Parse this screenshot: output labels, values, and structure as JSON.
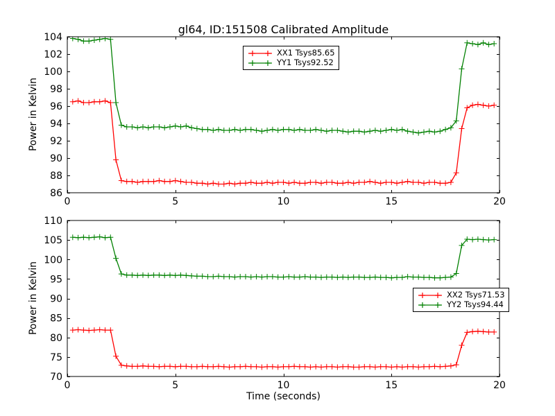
{
  "figure": {
    "background": "#ffffff",
    "axes_color": "#000000"
  },
  "chart_data": [
    {
      "type": "line",
      "title": "gl64, ID:151508 Calibrated Amplitude",
      "xlabel": "",
      "ylabel": "Power in Kelvin",
      "xlim": [
        0,
        20
      ],
      "ylim": [
        86,
        104
      ],
      "xticks": [
        0,
        5,
        10,
        15,
        20
      ],
      "yticks": [
        86,
        88,
        90,
        92,
        94,
        96,
        98,
        100,
        102,
        104
      ],
      "grid": false,
      "legend_position": "upper center",
      "x": [
        0.25,
        0.5,
        0.75,
        1.0,
        1.25,
        1.5,
        1.75,
        2.0,
        2.25,
        2.5,
        2.75,
        3.0,
        3.25,
        3.5,
        3.75,
        4.0,
        4.25,
        4.5,
        4.75,
        5.0,
        5.25,
        5.5,
        5.75,
        6.0,
        6.25,
        6.5,
        6.75,
        7.0,
        7.25,
        7.5,
        7.75,
        8.0,
        8.25,
        8.5,
        8.75,
        9.0,
        9.25,
        9.5,
        9.75,
        10.0,
        10.25,
        10.5,
        10.75,
        11.0,
        11.25,
        11.5,
        11.75,
        12.0,
        12.25,
        12.5,
        12.75,
        13.0,
        13.25,
        13.5,
        13.75,
        14.0,
        14.25,
        14.5,
        14.75,
        15.0,
        15.25,
        15.5,
        15.75,
        16.0,
        16.25,
        16.5,
        16.75,
        17.0,
        17.25,
        17.5,
        17.75,
        18.0,
        18.25,
        18.5,
        18.75,
        19.0,
        19.25,
        19.5,
        19.75
      ],
      "series": [
        {
          "name": "XX1",
          "label": "XX1 Tsys85.65",
          "color": "#ff0000",
          "marker": "+",
          "y": [
            96.5,
            96.6,
            96.4,
            96.4,
            96.5,
            96.5,
            96.6,
            96.4,
            89.8,
            87.4,
            87.3,
            87.3,
            87.2,
            87.3,
            87.3,
            87.3,
            87.4,
            87.3,
            87.3,
            87.4,
            87.3,
            87.2,
            87.2,
            87.1,
            87.1,
            87.0,
            87.1,
            87.0,
            87.0,
            87.1,
            87.0,
            87.1,
            87.1,
            87.2,
            87.1,
            87.1,
            87.2,
            87.1,
            87.2,
            87.2,
            87.1,
            87.2,
            87.1,
            87.1,
            87.2,
            87.2,
            87.1,
            87.2,
            87.2,
            87.1,
            87.1,
            87.2,
            87.1,
            87.2,
            87.2,
            87.3,
            87.2,
            87.1,
            87.2,
            87.2,
            87.1,
            87.2,
            87.3,
            87.2,
            87.2,
            87.1,
            87.2,
            87.2,
            87.1,
            87.1,
            87.2,
            88.3,
            93.4,
            95.8,
            96.1,
            96.2,
            96.1,
            96.0,
            96.1
          ]
        },
        {
          "name": "YY1",
          "label": "YY1 Tsys92.52",
          "color": "#008000",
          "marker": "+",
          "y": [
            103.8,
            103.7,
            103.5,
            103.5,
            103.6,
            103.7,
            103.8,
            103.7,
            96.4,
            93.8,
            93.6,
            93.6,
            93.5,
            93.6,
            93.5,
            93.6,
            93.6,
            93.5,
            93.6,
            93.7,
            93.6,
            93.7,
            93.5,
            93.4,
            93.3,
            93.3,
            93.2,
            93.3,
            93.2,
            93.2,
            93.3,
            93.2,
            93.3,
            93.3,
            93.2,
            93.1,
            93.2,
            93.3,
            93.2,
            93.3,
            93.3,
            93.2,
            93.3,
            93.2,
            93.2,
            93.3,
            93.2,
            93.1,
            93.2,
            93.2,
            93.1,
            93.0,
            93.1,
            93.1,
            93.0,
            93.1,
            93.2,
            93.1,
            93.2,
            93.3,
            93.2,
            93.3,
            93.1,
            93.0,
            92.9,
            93.0,
            93.1,
            93.0,
            93.1,
            93.3,
            93.5,
            94.3,
            100.3,
            103.3,
            103.2,
            103.1,
            103.3,
            103.1,
            103.2
          ]
        }
      ]
    },
    {
      "type": "line",
      "title": "",
      "xlabel": "Time (seconds)",
      "ylabel": "Power in Kelvin",
      "xlim": [
        0,
        20
      ],
      "ylim": [
        70,
        110
      ],
      "xticks": [
        0,
        5,
        10,
        15,
        20
      ],
      "yticks": [
        70,
        75,
        80,
        85,
        90,
        95,
        100,
        105,
        110
      ],
      "grid": false,
      "legend_position": "center right",
      "x": [
        0.25,
        0.5,
        0.75,
        1.0,
        1.25,
        1.5,
        1.75,
        2.0,
        2.25,
        2.5,
        2.75,
        3.0,
        3.25,
        3.5,
        3.75,
        4.0,
        4.25,
        4.5,
        4.75,
        5.0,
        5.25,
        5.5,
        5.75,
        6.0,
        6.25,
        6.5,
        6.75,
        7.0,
        7.25,
        7.5,
        7.75,
        8.0,
        8.25,
        8.5,
        8.75,
        9.0,
        9.25,
        9.5,
        9.75,
        10.0,
        10.25,
        10.5,
        10.75,
        11.0,
        11.25,
        11.5,
        11.75,
        12.0,
        12.25,
        12.5,
        12.75,
        13.0,
        13.25,
        13.5,
        13.75,
        14.0,
        14.25,
        14.5,
        14.75,
        15.0,
        15.25,
        15.5,
        15.75,
        16.0,
        16.25,
        16.5,
        16.75,
        17.0,
        17.25,
        17.5,
        17.75,
        18.0,
        18.25,
        18.5,
        18.75,
        19.0,
        19.25,
        19.5,
        19.75
      ],
      "series": [
        {
          "name": "XX2",
          "label": "XX2 Tsys71.53",
          "color": "#ff0000",
          "marker": "+",
          "y": [
            81.9,
            82.0,
            81.9,
            81.8,
            81.9,
            82.0,
            81.9,
            81.9,
            75.2,
            72.9,
            72.7,
            72.6,
            72.6,
            72.7,
            72.6,
            72.6,
            72.5,
            72.6,
            72.6,
            72.5,
            72.6,
            72.6,
            72.5,
            72.5,
            72.6,
            72.5,
            72.5,
            72.6,
            72.5,
            72.4,
            72.5,
            72.5,
            72.6,
            72.5,
            72.5,
            72.4,
            72.5,
            72.5,
            72.4,
            72.5,
            72.5,
            72.6,
            72.5,
            72.5,
            72.4,
            72.5,
            72.4,
            72.5,
            72.5,
            72.4,
            72.5,
            72.5,
            72.4,
            72.4,
            72.5,
            72.5,
            72.4,
            72.5,
            72.5,
            72.4,
            72.5,
            72.4,
            72.5,
            72.5,
            72.4,
            72.5,
            72.5,
            72.6,
            72.5,
            72.6,
            72.7,
            73.0,
            78.0,
            81.3,
            81.5,
            81.6,
            81.5,
            81.4,
            81.4
          ]
        },
        {
          "name": "YY2",
          "label": "YY2 Tsys94.44",
          "color": "#008000",
          "marker": "+",
          "y": [
            105.7,
            105.6,
            105.7,
            105.6,
            105.7,
            105.8,
            105.6,
            105.7,
            100.3,
            96.3,
            96.0,
            96.0,
            95.9,
            96.0,
            95.9,
            96.0,
            96.0,
            95.9,
            96.0,
            95.9,
            96.0,
            95.9,
            95.8,
            95.7,
            95.7,
            95.6,
            95.6,
            95.7,
            95.6,
            95.6,
            95.5,
            95.6,
            95.6,
            95.5,
            95.6,
            95.5,
            95.6,
            95.6,
            95.5,
            95.5,
            95.6,
            95.5,
            95.5,
            95.6,
            95.5,
            95.5,
            95.4,
            95.5,
            95.5,
            95.4,
            95.5,
            95.4,
            95.5,
            95.5,
            95.4,
            95.4,
            95.5,
            95.4,
            95.4,
            95.3,
            95.4,
            95.4,
            95.6,
            95.5,
            95.5,
            95.4,
            95.4,
            95.3,
            95.3,
            95.4,
            95.5,
            96.4,
            103.6,
            105.2,
            105.1,
            105.2,
            105.1,
            105.0,
            105.1
          ]
        }
      ]
    }
  ]
}
